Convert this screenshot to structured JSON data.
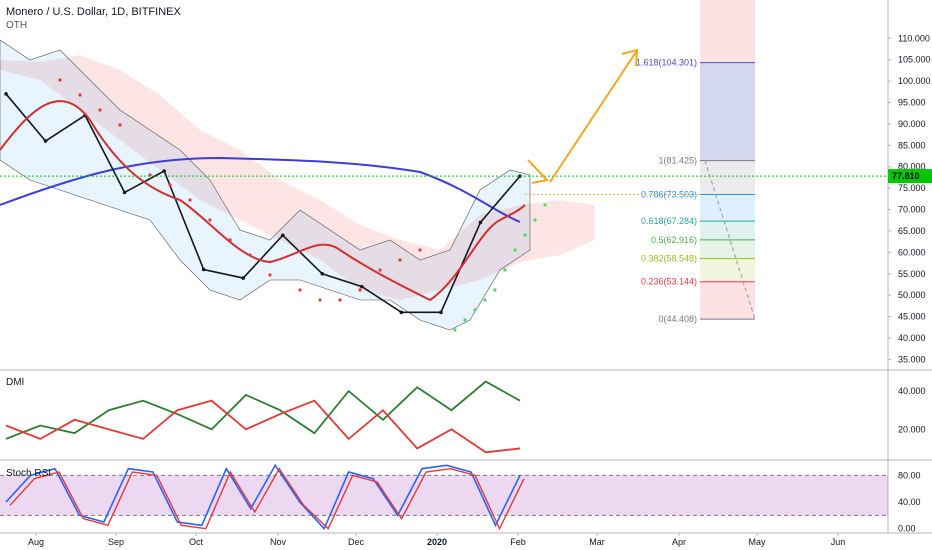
{
  "header": {
    "title": "Monero / U.S. Dollar, 1D, BITFINEX",
    "symbol_hint": "OTH"
  },
  "panes": {
    "dmi_label": "DMI",
    "stoch_label": "Stoch RSI"
  },
  "colors": {
    "up": "#26a69a",
    "down": "#ef5350",
    "price_line": "#00c800",
    "ma200": "#3d3ddb",
    "fib_arrow": "#f5a623"
  },
  "chart_data": [
    {
      "type": "line",
      "pane": "price",
      "ylim": [
        33,
        118
      ],
      "y_ticks": [
        "35.000",
        "40.000",
        "45.000",
        "50.000",
        "55.000",
        "60.000",
        "65.000",
        "70.000",
        "75.000",
        "80.000",
        "85.000",
        "90.000",
        "95.000",
        "100.000",
        "105.000",
        "110.000"
      ],
      "x_ticks": [
        "Aug",
        "Sep",
        "Oct",
        "Nov",
        "Dec",
        "2020",
        "Feb",
        "Mar",
        "Apr",
        "May",
        "Jun"
      ],
      "last_price": "77.810",
      "series": [
        {
          "name": "",
          "x": [
            "Jul 19",
            "Aug 5",
            "Aug 20",
            "Sep 5",
            "Sep 20",
            "Oct 5",
            "Oct 20",
            "Nov 5",
            "Nov 20",
            "Dec 5",
            "Dec 20",
            "Jan 1",
            "Jan 15",
            "Feb 2"
          ],
          "values": [
            97,
            86,
            92,
            74,
            79,
            56,
            54,
            64,
            55,
            52,
            46,
            46,
            67,
            77.8
          ]
        }
      ],
      "fib_levels": [
        {
          "label": "1.618(104.301)",
          "value": 104.301,
          "color": "#4b4bc8"
        },
        {
          "label": "1(81.425)",
          "value": 81.425,
          "color": "#787b86"
        },
        {
          "label": "0.786(73.503)",
          "value": 73.503,
          "color": "#2196f3"
        },
        {
          "label": "0.618(67.284)",
          "value": 67.284,
          "color": "#26a69a"
        },
        {
          "label": "0.5(62.916)",
          "value": 62.916,
          "color": "#4caf50"
        },
        {
          "label": "0.382(58.548)",
          "value": 58.548,
          "color": "#9bbc1c"
        },
        {
          "label": "0.236(53.144)",
          "value": 53.144,
          "color": "#f23645"
        },
        {
          "label": "0(44.408)",
          "value": 44.408,
          "color": "#787b86"
        }
      ]
    },
    {
      "type": "line",
      "pane": "dmi",
      "ylim": [
        5,
        50
      ],
      "y_ticks": [
        "20.000",
        "40.000"
      ],
      "series": [
        {
          "name": "",
          "values": [
            15,
            22,
            18,
            30,
            35,
            28,
            20,
            38,
            30,
            18,
            40,
            25,
            42,
            30,
            45,
            35
          ]
        },
        {
          "name": "",
          "values": [
            22,
            15,
            25,
            20,
            15,
            30,
            35,
            20,
            28,
            35,
            15,
            30,
            10,
            20,
            8,
            10
          ]
        }
      ]
    },
    {
      "type": "line",
      "pane": "stoch",
      "ylim": [
        -5,
        100
      ],
      "y_ticks": [
        "80.00",
        "40.00",
        "0.00"
      ],
      "series": [
        {
          "name": "",
          "values": [
            40,
            80,
            90,
            20,
            10,
            90,
            85,
            10,
            5,
            90,
            30,
            95,
            40,
            0,
            85,
            75,
            20,
            90,
            95,
            85,
            5,
            80
          ]
        }
      ]
    }
  ]
}
